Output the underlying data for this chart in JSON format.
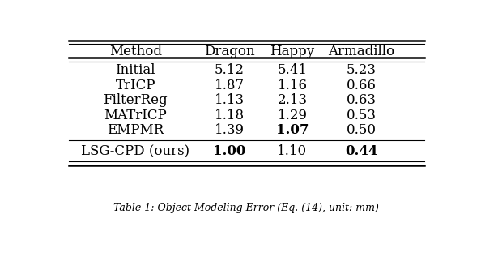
{
  "columns": [
    "Method",
    "Dragon",
    "Happy",
    "Armadillo"
  ],
  "rows": [
    {
      "method": "Initial",
      "dragon": "5.12",
      "happy": "5.41",
      "armadillo": "5.23",
      "bold": []
    },
    {
      "method": "TrICP",
      "dragon": "1.87",
      "happy": "1.16",
      "armadillo": "0.66",
      "bold": []
    },
    {
      "method": "FilterReg",
      "dragon": "1.13",
      "happy": "2.13",
      "armadillo": "0.63",
      "bold": []
    },
    {
      "method": "MATrICP",
      "dragon": "1.18",
      "happy": "1.29",
      "armadillo": "0.53",
      "bold": []
    },
    {
      "method": "EMPMR",
      "dragon": "1.39",
      "happy": "1.07",
      "armadillo": "0.50",
      "bold": [
        "happy"
      ]
    }
  ],
  "last_row": {
    "method": "LSG-CPD (ours)",
    "dragon": "1.00",
    "happy": "1.10",
    "armadillo": "0.44",
    "bold": [
      "dragon",
      "armadillo"
    ]
  },
  "caption": "Table 1: Object Modeling Error (Eq. (14), unit: mm)",
  "background_color": "#ffffff",
  "text_color": "#000000",
  "font_size": 12,
  "header_font_size": 12
}
